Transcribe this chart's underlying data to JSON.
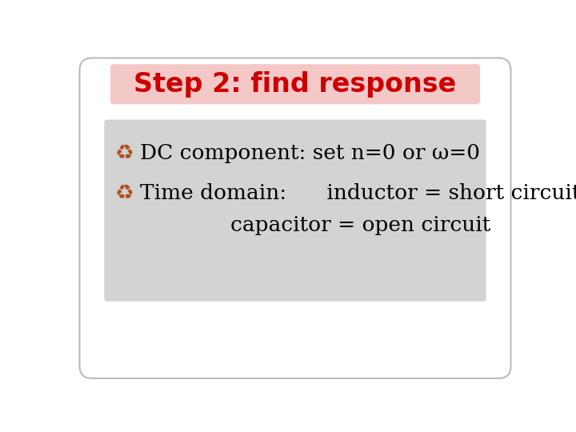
{
  "title": "Step 2: find response",
  "title_color": "#cc0000",
  "title_bg_color": "#f5c8c8",
  "title_fontsize": 24,
  "body_bg_color": "#d3d3d3",
  "body_text_color": "#000000",
  "bullet_color": "#b05020",
  "outer_bg_color": "#ffffff",
  "line1_text": "DC component: set n=0 or ω=0",
  "line2_text": "Time domain:      inductor = short circuit",
  "line3_text": "capacitor = open circuit",
  "body_fontsize": 19,
  "bullet_char": "∞∞"
}
